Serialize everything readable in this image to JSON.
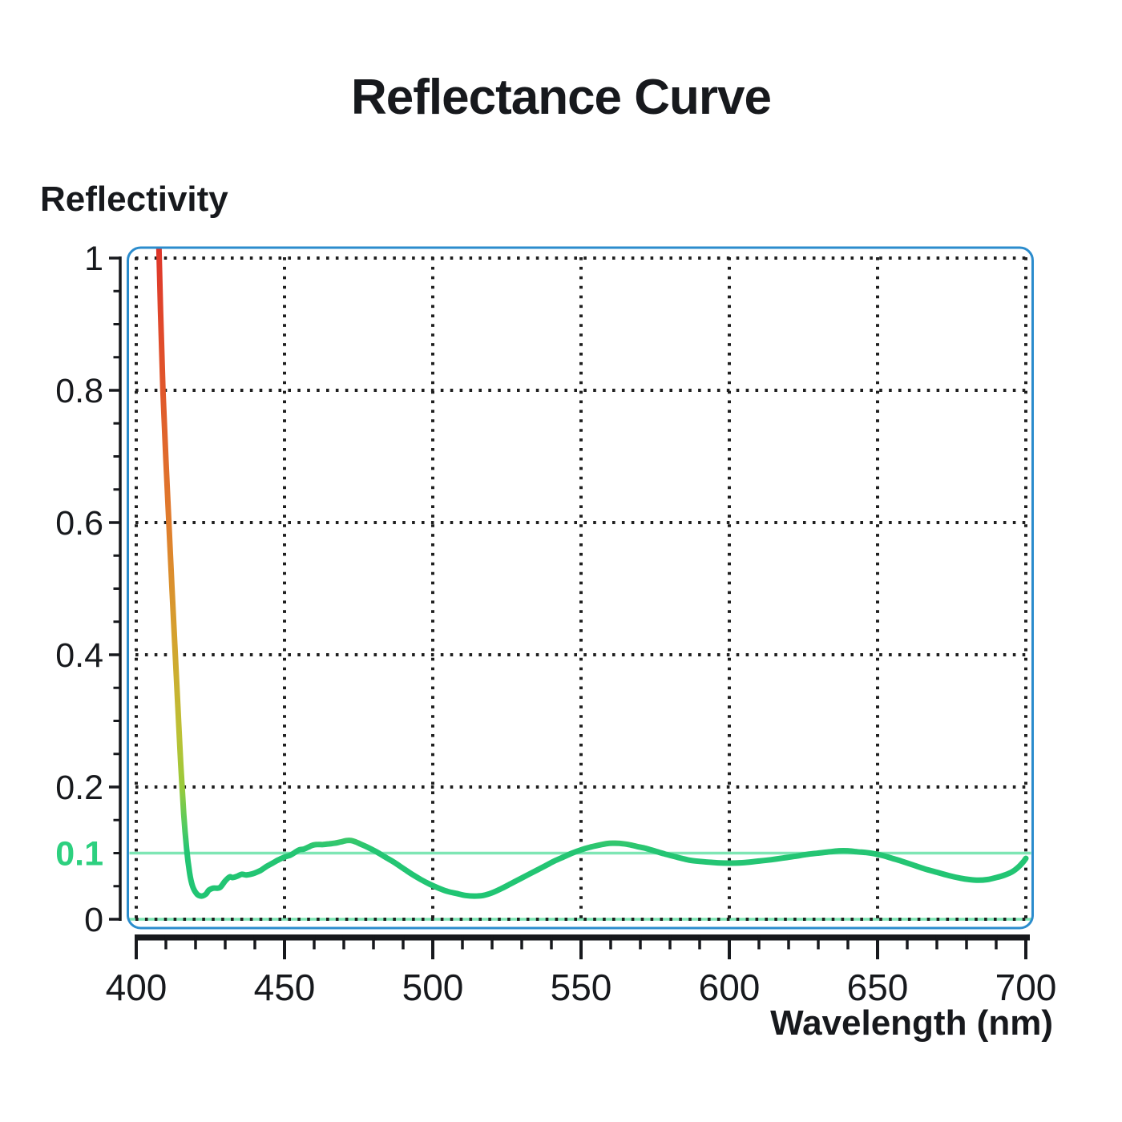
{
  "page": {
    "background": "#ffffff"
  },
  "chart_data": {
    "type": "line",
    "title": "Reflectance Curve",
    "ylabel": "Reflectivity",
    "xlabel": "Wavelength (nm)",
    "xlim": [
      400,
      700
    ],
    "ylim": [
      0,
      1
    ],
    "grid": "dotted",
    "legend": "none",
    "x_ticks": {
      "major": [
        400,
        450,
        500,
        550,
        600,
        650,
        700
      ],
      "minor_step": 10
    },
    "y_ticks": {
      "labeled_values": [
        1,
        0.8,
        0.6,
        0.4,
        0.2,
        0
      ],
      "labels": [
        "1",
        "0.8",
        "0.6",
        "0.4",
        "0.2",
        "0"
      ],
      "minor_step": 0.05
    },
    "highlight_tick": {
      "value": 0.1,
      "label": "0.1",
      "color": "#2dd07f"
    },
    "reference_lines": [
      {
        "y": 0.1,
        "color": "#7ee6b4"
      },
      {
        "y": 0.0,
        "color": "#7ee6b4"
      }
    ],
    "colors": {
      "plot_border": "#2b8ccd",
      "axis": "#17191d",
      "grid_dots": "#1f1f1f",
      "curve_main": "#1ec573",
      "text": "#17191d"
    },
    "curve_gradient_by_value": [
      {
        "value": 1.05,
        "color": "#dd3026"
      },
      {
        "value": 1.0,
        "color": "#df392b"
      },
      {
        "value": 0.8,
        "color": "#e0572b"
      },
      {
        "value": 0.6,
        "color": "#e07d2d"
      },
      {
        "value": 0.42,
        "color": "#d4a32e"
      },
      {
        "value": 0.28,
        "color": "#bcc135"
      },
      {
        "value": 0.2,
        "color": "#98ca3b"
      },
      {
        "value": 0.14,
        "color": "#52cb60"
      },
      {
        "value": 0.105,
        "color": "#25c573"
      },
      {
        "value": 0.0,
        "color": "#1ec573"
      }
    ],
    "series": [
      {
        "name": "reflectance",
        "points": [
          [
            407.4,
            1.06
          ],
          [
            408.2,
            0.92
          ],
          [
            409.0,
            0.8
          ],
          [
            410.0,
            0.695
          ],
          [
            411.0,
            0.6
          ],
          [
            412.0,
            0.505
          ],
          [
            413.0,
            0.415
          ],
          [
            414.0,
            0.325
          ],
          [
            415.0,
            0.235
          ],
          [
            416.0,
            0.16
          ],
          [
            417.0,
            0.106
          ],
          [
            418.0,
            0.07
          ],
          [
            419.0,
            0.05
          ],
          [
            420.5,
            0.038
          ],
          [
            422.0,
            0.035
          ],
          [
            423.5,
            0.038
          ],
          [
            424.5,
            0.044
          ],
          [
            426.0,
            0.047
          ],
          [
            427.5,
            0.047
          ],
          [
            428.5,
            0.049
          ],
          [
            430.0,
            0.058
          ],
          [
            431.5,
            0.064
          ],
          [
            432.5,
            0.063
          ],
          [
            434.0,
            0.065
          ],
          [
            435.5,
            0.068
          ],
          [
            437.0,
            0.067
          ],
          [
            438.5,
            0.068
          ],
          [
            440.0,
            0.07
          ],
          [
            442.0,
            0.074
          ],
          [
            444.0,
            0.08
          ],
          [
            446.0,
            0.085
          ],
          [
            448.0,
            0.09
          ],
          [
            450.0,
            0.094
          ],
          [
            452.0,
            0.097
          ],
          [
            453.5,
            0.101
          ],
          [
            455.0,
            0.105
          ],
          [
            456.5,
            0.106
          ],
          [
            458.0,
            0.109
          ],
          [
            459.5,
            0.112
          ],
          [
            461.0,
            0.113
          ],
          [
            463.0,
            0.113
          ],
          [
            465.0,
            0.114
          ],
          [
            467.0,
            0.115
          ],
          [
            469.0,
            0.117
          ],
          [
            471.0,
            0.119
          ],
          [
            472.5,
            0.119
          ],
          [
            474.0,
            0.117
          ],
          [
            476.0,
            0.113
          ],
          [
            478.0,
            0.109
          ],
          [
            481.0,
            0.102
          ],
          [
            484.0,
            0.094
          ],
          [
            487.0,
            0.086
          ],
          [
            490.0,
            0.077
          ],
          [
            493.0,
            0.068
          ],
          [
            496.0,
            0.06
          ],
          [
            499.0,
            0.053
          ],
          [
            502.0,
            0.047
          ],
          [
            505.0,
            0.042
          ],
          [
            508.0,
            0.039
          ],
          [
            511.0,
            0.036
          ],
          [
            514.0,
            0.035
          ],
          [
            517.0,
            0.036
          ],
          [
            520.0,
            0.04
          ],
          [
            523.0,
            0.046
          ],
          [
            526.0,
            0.053
          ],
          [
            529.0,
            0.06
          ],
          [
            532.0,
            0.067
          ],
          [
            535.0,
            0.074
          ],
          [
            538.0,
            0.081
          ],
          [
            541.0,
            0.088
          ],
          [
            544.0,
            0.094
          ],
          [
            547.0,
            0.1
          ],
          [
            550.0,
            0.105
          ],
          [
            553.0,
            0.109
          ],
          [
            556.0,
            0.112
          ],
          [
            559.0,
            0.1145
          ],
          [
            561.0,
            0.115
          ],
          [
            563.0,
            0.1148
          ],
          [
            566.0,
            0.113
          ],
          [
            569.0,
            0.11
          ],
          [
            572.0,
            0.107
          ],
          [
            575.0,
            0.103
          ],
          [
            578.0,
            0.099
          ],
          [
            581.0,
            0.0955
          ],
          [
            584.0,
            0.092
          ],
          [
            587.0,
            0.089
          ],
          [
            590.0,
            0.0875
          ],
          [
            594.0,
            0.086
          ],
          [
            598.0,
            0.085
          ],
          [
            602.0,
            0.085
          ],
          [
            606.0,
            0.086
          ],
          [
            610.0,
            0.088
          ],
          [
            614.0,
            0.09
          ],
          [
            618.0,
            0.0925
          ],
          [
            622.0,
            0.095
          ],
          [
            626.0,
            0.098
          ],
          [
            630.0,
            0.1
          ],
          [
            634.0,
            0.102
          ],
          [
            637.0,
            0.1035
          ],
          [
            640.0,
            0.1035
          ],
          [
            643.0,
            0.102
          ],
          [
            646.0,
            0.101
          ],
          [
            649.0,
            0.099
          ],
          [
            652.0,
            0.096
          ],
          [
            655.0,
            0.092
          ],
          [
            658.0,
            0.088
          ],
          [
            662.0,
            0.082
          ],
          [
            666.0,
            0.076
          ],
          [
            670.0,
            0.071
          ],
          [
            674.0,
            0.066
          ],
          [
            678.0,
            0.062
          ],
          [
            681.0,
            0.06
          ],
          [
            684.0,
            0.059
          ],
          [
            687.0,
            0.06
          ],
          [
            690.0,
            0.063
          ],
          [
            693.0,
            0.067
          ],
          [
            695.5,
            0.072
          ],
          [
            697.5,
            0.079
          ],
          [
            699.0,
            0.086
          ],
          [
            700.0,
            0.092
          ]
        ]
      }
    ]
  }
}
